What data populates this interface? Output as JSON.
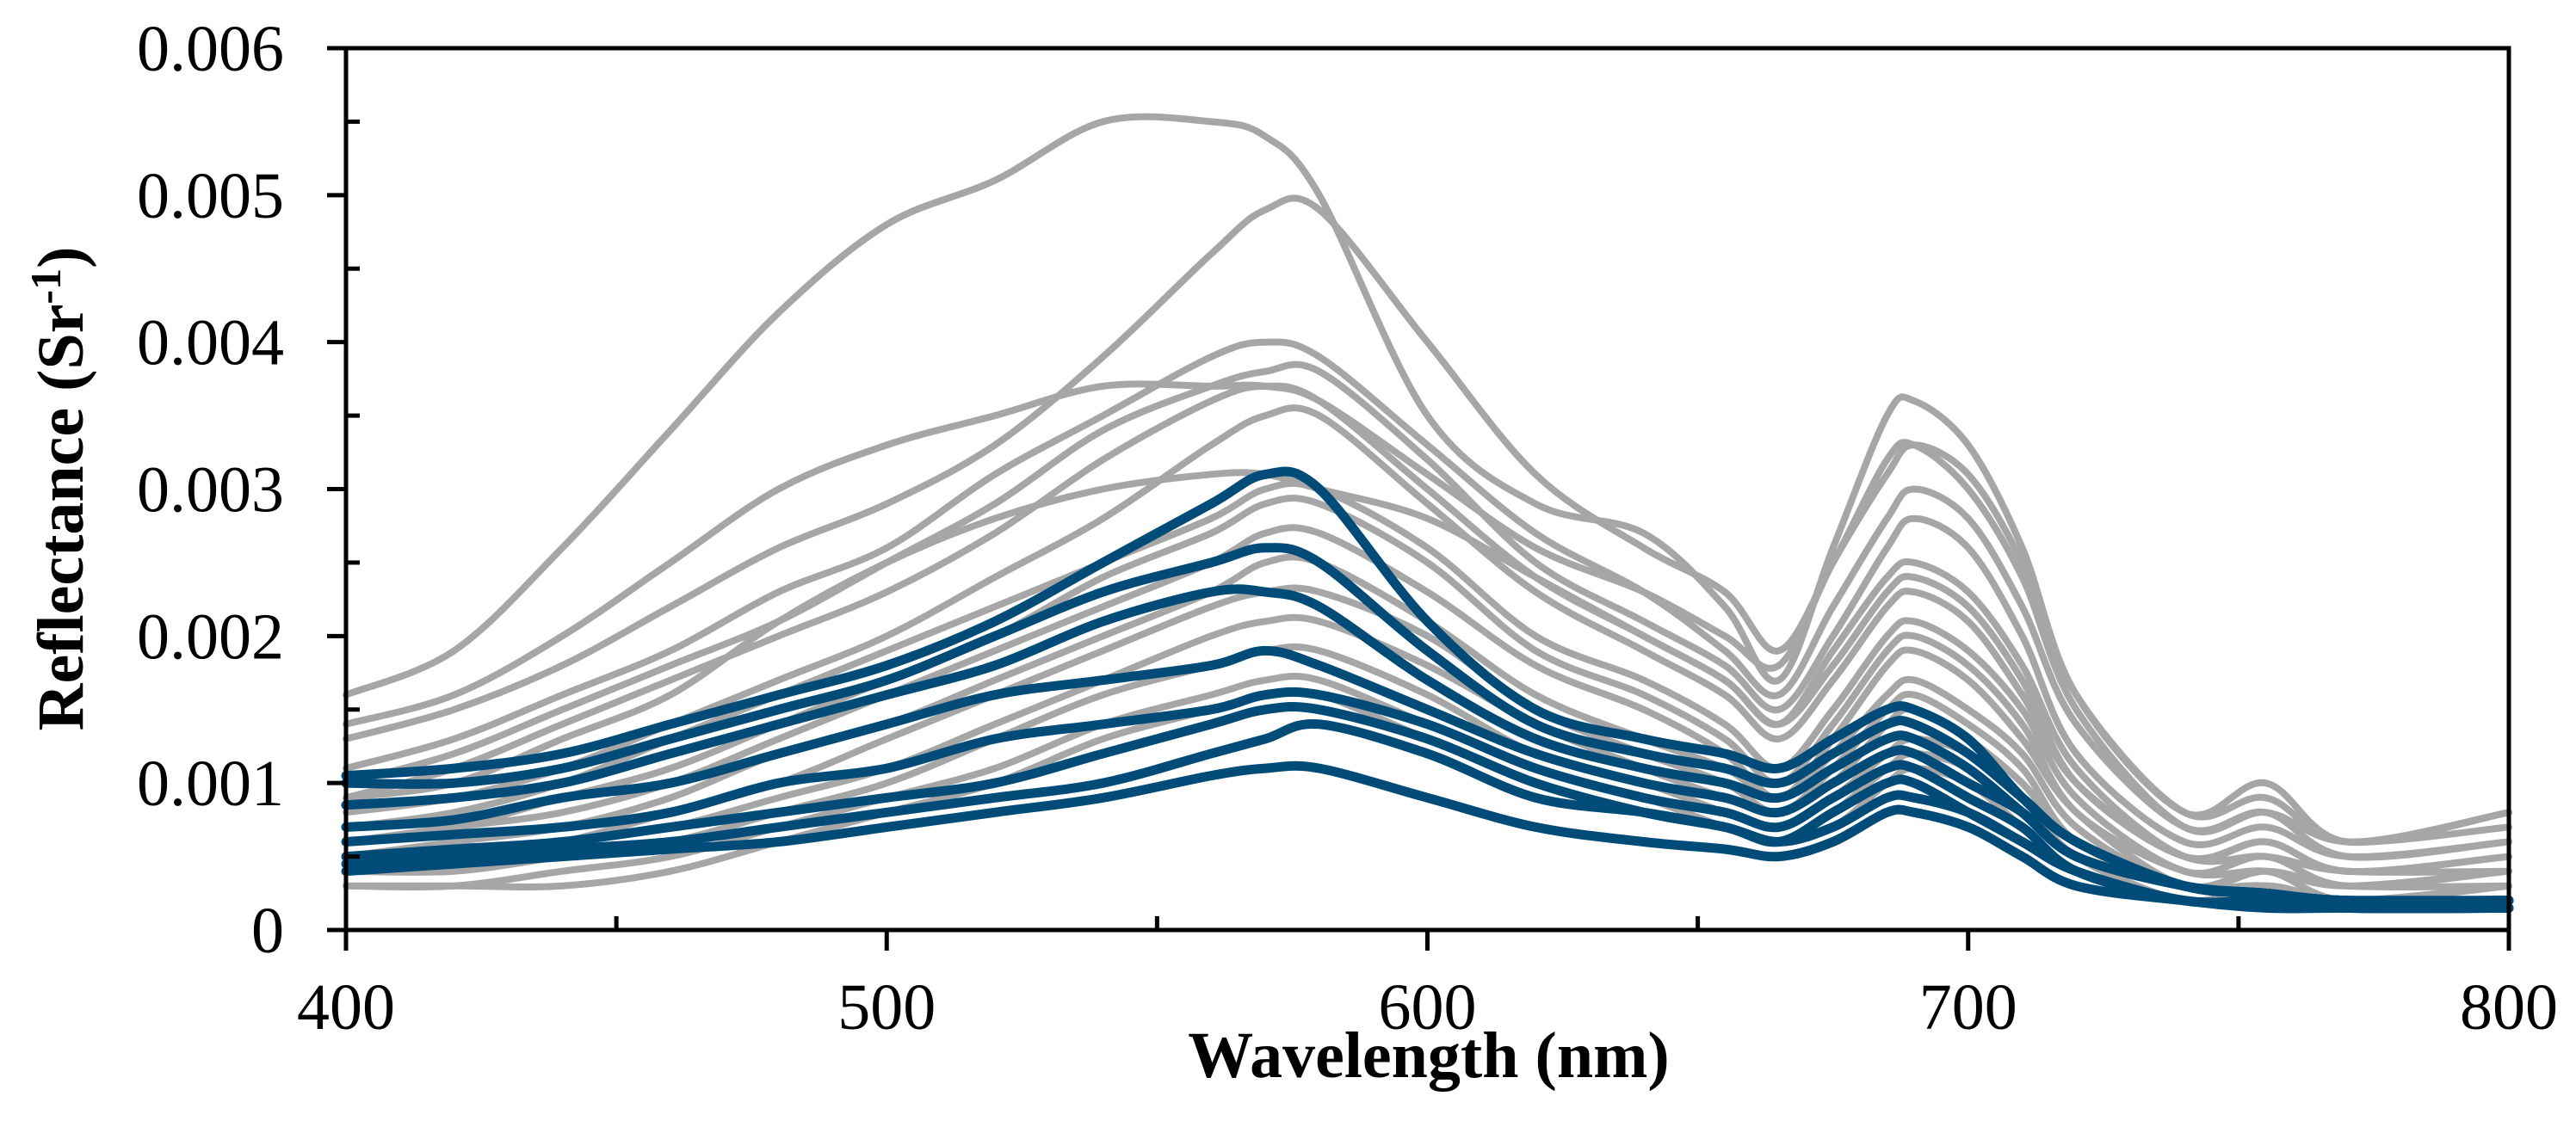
{
  "chart_data": {
    "type": "line",
    "xlabel": "Wavelength (nm)",
    "ylabel": {
      "base": "Reflectance (Sr",
      "superscript": "-1",
      "close": ")"
    },
    "xlim": [
      400,
      800
    ],
    "ylim": [
      0,
      0.006
    ],
    "x_ticks": [
      400,
      500,
      600,
      700,
      800
    ],
    "x_tick_labels": [
      "400",
      "500",
      "600",
      "700",
      "800"
    ],
    "y_ticks": [
      0,
      0.001,
      0.002,
      0.003,
      0.004,
      0.005,
      0.006
    ],
    "y_tick_labels": [
      "0",
      "0.001",
      "0.002",
      "0.003",
      "0.004",
      "0.005",
      "0.006"
    ],
    "x_minor_step": 50,
    "y_minor_step": 0.0005,
    "grid": false,
    "legend": "none",
    "colors": {
      "gray_series": "#a6a6a6",
      "blue_series": "#004b78",
      "axis": "#000000"
    },
    "x": [
      400,
      420,
      440,
      460,
      480,
      500,
      520,
      540,
      560,
      570,
      580,
      600,
      620,
      640,
      655,
      665,
      675,
      685,
      690,
      700,
      710,
      720,
      740,
      755,
      770,
      800
    ],
    "series": [
      {
        "color": "gray",
        "values": [
          0.0016,
          0.0019,
          0.0026,
          0.0034,
          0.0042,
          0.0048,
          0.0051,
          0.0055,
          0.0055,
          0.0054,
          0.005,
          0.0035,
          0.0029,
          0.0027,
          0.0022,
          0.0017,
          0.0026,
          0.0035,
          0.0036,
          0.0033,
          0.0026,
          0.0016,
          0.0008,
          0.001,
          0.0006,
          0.0008
        ]
      },
      {
        "color": "gray",
        "values": [
          0.0014,
          0.0016,
          0.002,
          0.0025,
          0.003,
          0.0033,
          0.0035,
          0.0037,
          0.0037,
          0.0037,
          0.0036,
          0.0031,
          0.0026,
          0.0023,
          0.002,
          0.0018,
          0.0025,
          0.0031,
          0.0033,
          0.0031,
          0.0025,
          0.0016,
          0.0008,
          0.0009,
          0.0006,
          0.0008
        ]
      },
      {
        "color": "gray",
        "values": [
          0.0013,
          0.0015,
          0.0018,
          0.0022,
          0.0026,
          0.0029,
          0.0033,
          0.0039,
          0.0046,
          0.0049,
          0.0049,
          0.004,
          0.0031,
          0.0026,
          0.0023,
          0.0019,
          0.0025,
          0.0032,
          0.0033,
          0.003,
          0.0024,
          0.0015,
          0.0007,
          0.0008,
          0.0006,
          0.0007
        ]
      },
      {
        "color": "gray",
        "values": [
          0.0011,
          0.0013,
          0.0016,
          0.0019,
          0.0023,
          0.0026,
          0.0031,
          0.0035,
          0.0039,
          0.004,
          0.0039,
          0.0033,
          0.0027,
          0.0023,
          0.0019,
          0.0016,
          0.0022,
          0.0028,
          0.003,
          0.0028,
          0.0022,
          0.0014,
          0.0007,
          0.0008,
          0.0005,
          0.0006
        ]
      },
      {
        "color": "gray",
        "values": [
          0.001,
          0.0012,
          0.0015,
          0.0018,
          0.0021,
          0.0025,
          0.0029,
          0.0034,
          0.0037,
          0.0038,
          0.0038,
          0.0032,
          0.0025,
          0.0021,
          0.0018,
          0.0015,
          0.002,
          0.0026,
          0.0028,
          0.0026,
          0.002,
          0.0012,
          0.0006,
          0.0007,
          0.0005,
          0.0006
        ]
      },
      {
        "color": "gray",
        "values": [
          0.0009,
          0.0011,
          0.0014,
          0.0017,
          0.002,
          0.0023,
          0.0027,
          0.0032,
          0.0036,
          0.0037,
          0.0036,
          0.003,
          0.0024,
          0.002,
          0.0017,
          0.0014,
          0.0019,
          0.0024,
          0.0025,
          0.0023,
          0.0018,
          0.0011,
          0.0005,
          0.0006,
          0.0004,
          0.0005
        ]
      },
      {
        "color": "gray",
        "values": [
          0.0009,
          0.001,
          0.0013,
          0.0016,
          0.0021,
          0.0025,
          0.0028,
          0.003,
          0.0031,
          0.0031,
          0.003,
          0.0028,
          0.0024,
          0.002,
          0.0017,
          0.0014,
          0.0018,
          0.0023,
          0.0024,
          0.0022,
          0.0017,
          0.001,
          0.0005,
          0.0006,
          0.0004,
          0.0005
        ]
      },
      {
        "color": "gray",
        "values": [
          0.0008,
          0.0009,
          0.0011,
          0.0014,
          0.0017,
          0.002,
          0.0024,
          0.0028,
          0.0033,
          0.0035,
          0.0035,
          0.0029,
          0.0023,
          0.0019,
          0.0016,
          0.0013,
          0.0017,
          0.0022,
          0.0023,
          0.0021,
          0.0016,
          0.001,
          0.0005,
          0.0005,
          0.0004,
          0.0004
        ]
      },
      {
        "color": "gray",
        "values": [
          0.0007,
          0.0008,
          0.001,
          0.0013,
          0.0016,
          0.0019,
          0.0022,
          0.0025,
          0.0028,
          0.003,
          0.003,
          0.0026,
          0.002,
          0.0017,
          0.0014,
          0.0011,
          0.0015,
          0.002,
          0.0021,
          0.0019,
          0.0015,
          0.0009,
          0.0004,
          0.0005,
          0.0003,
          0.0004
        ]
      },
      {
        "color": "gray",
        "values": [
          0.0006,
          0.0007,
          0.0009,
          0.0011,
          0.0014,
          0.0017,
          0.002,
          0.0024,
          0.0027,
          0.0029,
          0.0029,
          0.0025,
          0.0019,
          0.0016,
          0.0013,
          0.001,
          0.0014,
          0.0019,
          0.002,
          0.0018,
          0.0014,
          0.0008,
          0.0004,
          0.0004,
          0.0003,
          0.0004
        ]
      },
      {
        "color": "gray",
        "values": [
          0.0006,
          0.0007,
          0.0008,
          0.001,
          0.0013,
          0.0016,
          0.0019,
          0.0022,
          0.0025,
          0.0027,
          0.0027,
          0.0023,
          0.0018,
          0.0015,
          0.0012,
          0.0009,
          0.0013,
          0.0018,
          0.0019,
          0.0017,
          0.0013,
          0.0008,
          0.0003,
          0.0004,
          0.0003,
          0.0003
        ]
      },
      {
        "color": "gray",
        "values": [
          0.0005,
          0.0006,
          0.0007,
          0.0009,
          0.0012,
          0.0014,
          0.0017,
          0.002,
          0.0023,
          0.0025,
          0.0025,
          0.0021,
          0.0016,
          0.0013,
          0.0011,
          0.0009,
          0.0012,
          0.0016,
          0.0017,
          0.0015,
          0.0012,
          0.0007,
          0.0003,
          0.0004,
          0.0002,
          0.0003
        ]
      },
      {
        "color": "gray",
        "values": [
          0.0005,
          0.0005,
          0.0006,
          0.0008,
          0.001,
          0.0013,
          0.0016,
          0.0019,
          0.0022,
          0.0023,
          0.0023,
          0.002,
          0.0015,
          0.0012,
          0.001,
          0.0008,
          0.0011,
          0.0015,
          0.0016,
          0.0014,
          0.0011,
          0.0006,
          0.0003,
          0.0003,
          0.0002,
          0.0003
        ]
      },
      {
        "color": "gray",
        "values": [
          0.0004,
          0.0005,
          0.0006,
          0.0007,
          0.0009,
          0.0011,
          0.0014,
          0.0017,
          0.002,
          0.0021,
          0.0021,
          0.0018,
          0.0014,
          0.0011,
          0.0009,
          0.0008,
          0.001,
          0.0014,
          0.0015,
          0.0013,
          0.001,
          0.0006,
          0.0003,
          0.0003,
          0.0002,
          0.0003
        ]
      },
      {
        "color": "gray",
        "values": [
          0.0004,
          0.0004,
          0.0005,
          0.0006,
          0.0008,
          0.001,
          0.0013,
          0.0016,
          0.0018,
          0.0019,
          0.0019,
          0.0016,
          0.0012,
          0.001,
          0.0008,
          0.0007,
          0.0009,
          0.0012,
          0.0013,
          0.0012,
          0.0009,
          0.0005,
          0.0002,
          0.0003,
          0.0002,
          0.0002
        ]
      },
      {
        "color": "gray",
        "values": [
          0.0003,
          0.0003,
          0.0004,
          0.0005,
          0.0007,
          0.0009,
          0.0011,
          0.0014,
          0.0016,
          0.0017,
          0.0017,
          0.0014,
          0.0011,
          0.0009,
          0.0007,
          0.0006,
          0.0008,
          0.0011,
          0.0012,
          0.0011,
          0.0008,
          0.0005,
          0.0002,
          0.0003,
          0.0002,
          0.0002
        ]
      },
      {
        "color": "gray",
        "values": [
          0.0003,
          0.0003,
          0.0003,
          0.0004,
          0.0006,
          0.0008,
          0.001,
          0.0013,
          0.0015,
          0.0016,
          0.0016,
          0.0013,
          0.001,
          0.0008,
          0.0007,
          0.0006,
          0.0007,
          0.001,
          0.0011,
          0.001,
          0.0007,
          0.0004,
          0.0002,
          0.0002,
          0.0002,
          0.0002
        ]
      },
      {
        "color": "blue",
        "values": [
          0.00105,
          0.0011,
          0.0012,
          0.0014,
          0.0016,
          0.0018,
          0.0021,
          0.0025,
          0.0029,
          0.0031,
          0.003,
          0.0021,
          0.0015,
          0.0013,
          0.0012,
          0.0011,
          0.0013,
          0.0015,
          0.0015,
          0.0013,
          0.0009,
          0.0006,
          0.0003,
          0.00025,
          0.0002,
          0.0002
        ]
      },
      {
        "color": "blue",
        "values": [
          0.001,
          0.001,
          0.0011,
          0.0013,
          0.0015,
          0.0017,
          0.002,
          0.0023,
          0.0025,
          0.0026,
          0.0025,
          0.0019,
          0.0014,
          0.0012,
          0.0011,
          0.001,
          0.0012,
          0.0014,
          0.0014,
          0.0012,
          0.0009,
          0.0006,
          0.0003,
          0.00025,
          0.0002,
          0.0002
        ]
      },
      {
        "color": "blue",
        "values": [
          0.00085,
          0.0009,
          0.001,
          0.0012,
          0.0014,
          0.0016,
          0.0018,
          0.0021,
          0.0023,
          0.0023,
          0.0022,
          0.0017,
          0.0013,
          0.0011,
          0.001,
          0.0009,
          0.0011,
          0.0013,
          0.0013,
          0.0011,
          0.0008,
          0.0005,
          0.0003,
          0.00025,
          0.0002,
          0.0002
        ]
      },
      {
        "color": "blue",
        "values": [
          0.0007,
          0.00075,
          0.0009,
          0.001,
          0.0012,
          0.0014,
          0.0016,
          0.0017,
          0.0018,
          0.0019,
          0.0018,
          0.0015,
          0.0012,
          0.001,
          0.0009,
          0.0008,
          0.001,
          0.0012,
          0.0012,
          0.001,
          0.0008,
          0.0005,
          0.0003,
          0.00025,
          0.0002,
          0.0002
        ]
      },
      {
        "color": "blue",
        "values": [
          0.0006,
          0.00065,
          0.0007,
          0.0008,
          0.001,
          0.0011,
          0.0013,
          0.0014,
          0.0015,
          0.0016,
          0.0016,
          0.0014,
          0.0011,
          0.0009,
          0.0008,
          0.0007,
          0.0009,
          0.0011,
          0.0011,
          0.0009,
          0.0007,
          0.0004,
          0.0002,
          0.0002,
          0.0002,
          0.0002
        ]
      },
      {
        "color": "blue",
        "values": [
          0.0005,
          0.00055,
          0.0006,
          0.0007,
          0.0008,
          0.0009,
          0.001,
          0.0012,
          0.0014,
          0.0015,
          0.0015,
          0.0013,
          0.001,
          0.0008,
          0.0007,
          0.0006,
          0.0008,
          0.001,
          0.001,
          0.0008,
          0.0006,
          0.0004,
          0.0002,
          0.0002,
          0.00015,
          0.00015
        ]
      },
      {
        "color": "blue",
        "values": [
          0.00045,
          0.0005,
          0.00055,
          0.0006,
          0.0007,
          0.0008,
          0.0009,
          0.001,
          0.0012,
          0.0013,
          0.0014,
          0.0012,
          0.0009,
          0.0008,
          0.0007,
          0.0006,
          0.0007,
          0.0009,
          0.0009,
          0.0008,
          0.0006,
          0.0004,
          0.0002,
          0.0002,
          0.00015,
          0.00015
        ]
      },
      {
        "color": "blue",
        "values": [
          0.0004,
          0.00045,
          0.0005,
          0.00055,
          0.0006,
          0.0007,
          0.0008,
          0.0009,
          0.00105,
          0.0011,
          0.0011,
          0.0009,
          0.0007,
          0.0006,
          0.00055,
          0.0005,
          0.0006,
          0.0008,
          0.0008,
          0.0007,
          0.0005,
          0.0003,
          0.0002,
          0.00015,
          0.00015,
          0.00015
        ]
      }
    ]
  }
}
